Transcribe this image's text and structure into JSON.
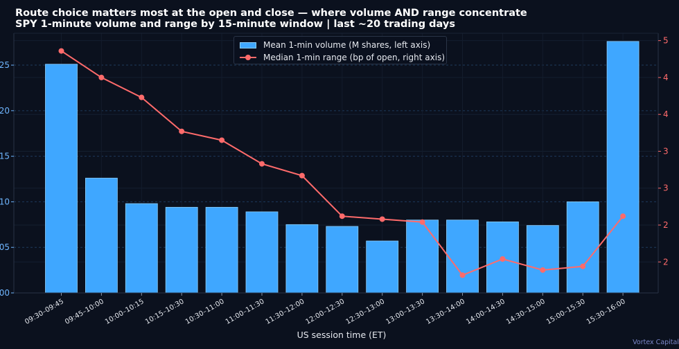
{
  "header": {
    "title": "Route choice matters most at the open and close — where volume AND range concentrate",
    "subtitle": "SPY 1-minute volume and range by 15-minute window  |  last ~20 trading days"
  },
  "footer": {
    "credit": "Vortex Capital"
  },
  "colors": {
    "background": "#0b111e",
    "bar": "#3fa7ff",
    "bar_edge": "#8ccfff",
    "line": "#ff6b6b",
    "left_axis": "#6fb6ff",
    "right_axis": "#ff6b6b",
    "grid": "#1e3a5c"
  },
  "chart_data": {
    "type": "bar",
    "xlabel": "US session time (ET)",
    "categories": [
      "09:30–09:45",
      "09:45–10:00",
      "10:00–10:15",
      "10:15–10:30",
      "10:30–11:00",
      "11:00–11:30",
      "11:30–12:00",
      "12:00–12:30",
      "12:30–13:00",
      "13:00–13:30",
      "13:30–14:00",
      "14:00–14:30",
      "14:30–15:00",
      "15:00–15:30",
      "15:30–16:00"
    ],
    "y_left": {
      "ticks": [
        0,
        0.05,
        0.1,
        0.15,
        0.2,
        0.25
      ],
      "tick_labels": [
        "00",
        "05",
        "10",
        "15",
        "20",
        "25"
      ],
      "ylim": [
        0,
        0.285
      ]
    },
    "y_right": {
      "ticks": [
        2.0,
        2.5,
        3.0,
        3.5,
        4.0,
        4.5,
        5.0
      ],
      "tick_labels": [
        "2",
        "2",
        "3",
        "3",
        "4",
        "4",
        "5"
      ],
      "ylim": [
        1.58,
        5.1
      ]
    },
    "grid": true,
    "legend_position": "top-center",
    "series": [
      {
        "name": "Mean 1-min volume (M shares, left axis)",
        "type": "bar",
        "axis": "left",
        "values": [
          0.251,
          0.126,
          0.098,
          0.094,
          0.094,
          0.089,
          0.075,
          0.073,
          0.057,
          0.08,
          0.08,
          0.078,
          0.074,
          0.1,
          0.276
        ]
      },
      {
        "name": "Median 1-min range (bp of open, right axis)",
        "type": "line",
        "axis": "right",
        "values": [
          4.86,
          4.5,
          4.23,
          3.77,
          3.65,
          3.33,
          3.17,
          2.62,
          2.58,
          2.54,
          1.82,
          2.04,
          1.89,
          1.94,
          2.62
        ]
      }
    ]
  }
}
